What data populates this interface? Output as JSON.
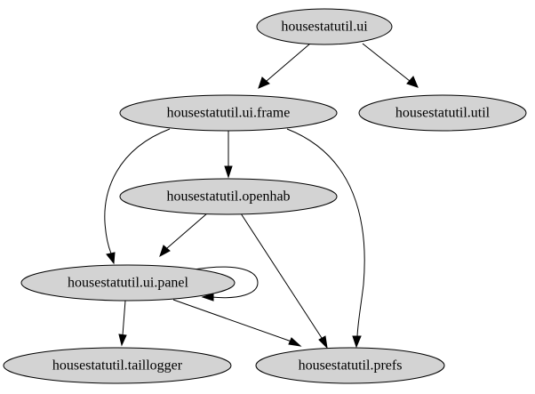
{
  "graph": {
    "nodes": [
      {
        "id": "ui",
        "label": "housestatutil.ui"
      },
      {
        "id": "frame",
        "label": "housestatutil.ui.frame"
      },
      {
        "id": "util",
        "label": "housestatutil.util"
      },
      {
        "id": "openhab",
        "label": "housestatutil.openhab"
      },
      {
        "id": "panel",
        "label": "housestatutil.ui.panel"
      },
      {
        "id": "taillogger",
        "label": "housestatutil.taillogger"
      },
      {
        "id": "prefs",
        "label": "housestatutil.prefs"
      }
    ],
    "edges": [
      {
        "from": "ui",
        "to": "frame"
      },
      {
        "from": "ui",
        "to": "util"
      },
      {
        "from": "frame",
        "to": "openhab"
      },
      {
        "from": "frame",
        "to": "panel"
      },
      {
        "from": "frame",
        "to": "prefs"
      },
      {
        "from": "openhab",
        "to": "panel"
      },
      {
        "from": "openhab",
        "to": "prefs"
      },
      {
        "from": "panel",
        "to": "panel"
      },
      {
        "from": "panel",
        "to": "taillogger"
      },
      {
        "from": "panel",
        "to": "prefs"
      }
    ]
  }
}
